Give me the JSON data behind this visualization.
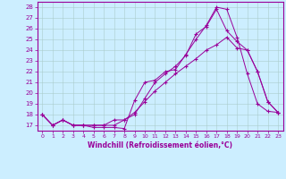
{
  "xlabel": "Windchill (Refroidissement éolien,°C)",
  "background_color": "#cceeff",
  "line_color": "#990099",
  "grid_color": "#aacccc",
  "xlim": [
    -0.5,
    23.5
  ],
  "ylim": [
    16.5,
    28.5
  ],
  "yticks": [
    17,
    18,
    19,
    20,
    21,
    22,
    23,
    24,
    25,
    26,
    27,
    28
  ],
  "xticks": [
    0,
    1,
    2,
    3,
    4,
    5,
    6,
    7,
    8,
    9,
    10,
    11,
    12,
    13,
    14,
    15,
    16,
    17,
    18,
    19,
    20,
    21,
    22,
    23
  ],
  "line1_x": [
    0,
    1,
    2,
    3,
    4,
    5,
    6,
    7,
    8,
    9,
    10,
    11,
    12,
    13,
    14,
    15,
    16,
    17,
    18,
    19,
    20,
    21,
    22,
    23
  ],
  "line1_y": [
    18.0,
    17.0,
    17.5,
    17.0,
    17.0,
    16.8,
    16.8,
    16.8,
    16.7,
    19.3,
    21.0,
    21.2,
    22.0,
    22.2,
    23.6,
    25.0,
    26.3,
    28.0,
    27.8,
    25.2,
    21.8,
    19.0,
    18.3,
    18.2
  ],
  "line2_x": [
    0,
    1,
    2,
    3,
    4,
    5,
    6,
    7,
    8,
    9,
    10,
    11,
    12,
    13,
    14,
    15,
    16,
    17,
    18,
    19,
    20,
    21,
    22,
    23
  ],
  "line2_y": [
    18.0,
    17.0,
    17.5,
    17.0,
    17.0,
    17.0,
    17.0,
    17.0,
    17.5,
    18.2,
    19.2,
    20.2,
    21.0,
    21.8,
    22.5,
    23.2,
    24.0,
    24.5,
    25.2,
    24.2,
    24.0,
    22.0,
    19.2,
    18.2
  ],
  "line3_x": [
    0,
    1,
    2,
    3,
    4,
    5,
    6,
    7,
    8,
    9,
    10,
    11,
    12,
    13,
    14,
    15,
    16,
    17,
    18,
    19,
    20,
    21,
    22,
    23
  ],
  "line3_y": [
    18.0,
    17.0,
    17.5,
    17.0,
    17.0,
    17.0,
    17.0,
    17.5,
    17.5,
    18.0,
    19.5,
    21.0,
    21.8,
    22.5,
    23.5,
    25.5,
    26.2,
    27.8,
    25.8,
    24.8,
    24.0,
    22.0,
    19.2,
    18.2
  ]
}
